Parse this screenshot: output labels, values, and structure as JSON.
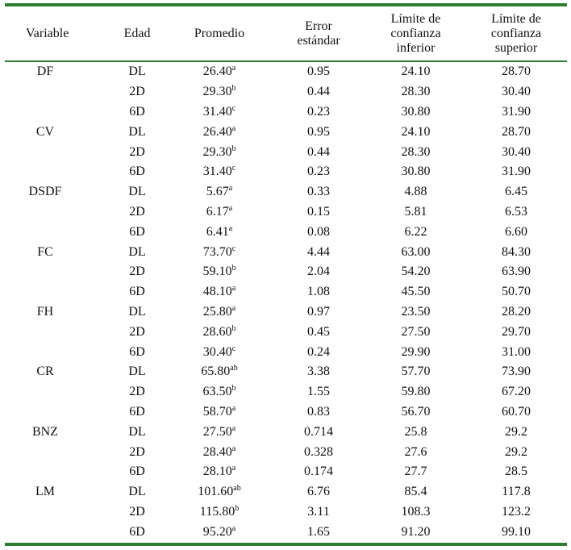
{
  "headers": {
    "variable": "Variable",
    "edad": "Edad",
    "promedio": "Promedio",
    "error": "Error\nestándar",
    "lci": "Límite de\nconfianza\ninferior",
    "lcs": "Límite de\nconfianza\nsuperior"
  },
  "rows": [
    {
      "variable": "DF",
      "edad": "DL",
      "mean": "26.40",
      "sup": "a",
      "se": "0.95",
      "lci": "24.10",
      "lcs": "28.70"
    },
    {
      "variable": "",
      "edad": "2D",
      "mean": "29.30",
      "sup": "b",
      "se": "0.44",
      "lci": "28.30",
      "lcs": "30.40"
    },
    {
      "variable": "",
      "edad": "6D",
      "mean": "31.40",
      "sup": "c",
      "se": "0.23",
      "lci": "30.80",
      "lcs": "31.90"
    },
    {
      "variable": "CV",
      "edad": "DL",
      "mean": "26.40",
      "sup": "a",
      "se": "0.95",
      "lci": "24.10",
      "lcs": "28.70"
    },
    {
      "variable": "",
      "edad": "2D",
      "mean": "29.30",
      "sup": "b",
      "se": "0.44",
      "lci": "28.30",
      "lcs": "30.40"
    },
    {
      "variable": "",
      "edad": "6D",
      "mean": "31.40",
      "sup": "c",
      "se": "0.23",
      "lci": "30.80",
      "lcs": "31.90"
    },
    {
      "variable": "DSDF",
      "edad": "DL",
      "mean": "5.67",
      "sup": "a",
      "se": "0.33",
      "lci": "4.88",
      "lcs": "6.45"
    },
    {
      "variable": "",
      "edad": "2D",
      "mean": "6.17",
      "sup": "a",
      "se": "0.15",
      "lci": "5.81",
      "lcs": "6.53"
    },
    {
      "variable": "",
      "edad": "6D",
      "mean": "6.41",
      "sup": "a",
      "se": "0.08",
      "lci": "6.22",
      "lcs": "6.60"
    },
    {
      "variable": "FC",
      "edad": "DL",
      "mean": "73.70",
      "sup": "c",
      "se": "4.44",
      "lci": "63.00",
      "lcs": "84.30"
    },
    {
      "variable": "",
      "edad": "2D",
      "mean": "59.10",
      "sup": "b",
      "se": "2.04",
      "lci": "54.20",
      "lcs": "63.90"
    },
    {
      "variable": "",
      "edad": "6D",
      "mean": "48.10",
      "sup": "a",
      "se": "1.08",
      "lci": "45.50",
      "lcs": "50.70"
    },
    {
      "variable": "FH",
      "edad": "DL",
      "mean": "25.80",
      "sup": "a",
      "se": "0.97",
      "lci": "23.50",
      "lcs": "28.20"
    },
    {
      "variable": "",
      "edad": "2D",
      "mean": "28.60",
      "sup": "b",
      "se": "0.45",
      "lci": "27.50",
      "lcs": "29.70"
    },
    {
      "variable": "",
      "edad": "6D",
      "mean": "30.40",
      "sup": "c",
      "se": "0.24",
      "lci": "29.90",
      "lcs": "31.00"
    },
    {
      "variable": "CR",
      "edad": "DL",
      "mean": "65.80",
      "sup": "ab",
      "se": "3.38",
      "lci": "57.70",
      "lcs": "73.90"
    },
    {
      "variable": "",
      "edad": "2D",
      "mean": "63.50",
      "sup": "b",
      "se": "1.55",
      "lci": "59.80",
      "lcs": "67.20"
    },
    {
      "variable": "",
      "edad": "6D",
      "mean": "58.70",
      "sup": "a",
      "se": "0.83",
      "lci": "56.70",
      "lcs": "60.70"
    },
    {
      "variable": "BNZ",
      "edad": "DL",
      "mean": "27.50",
      "sup": "a",
      "se": "0.714",
      "lci": "25.8",
      "lcs": "29.2"
    },
    {
      "variable": "",
      "edad": "2D",
      "mean": "28.40",
      "sup": "a",
      "se": "0.328",
      "lci": "27.6",
      "lcs": "29.2"
    },
    {
      "variable": "",
      "edad": "6D",
      "mean": "28.10",
      "sup": "a",
      "se": "0.174",
      "lci": "27.7",
      "lcs": "28.5"
    },
    {
      "variable": "LM",
      "edad": "DL",
      "mean": "101.60",
      "sup": "ab",
      "se": "6.76",
      "lci": "85.4",
      "lcs": "117.8"
    },
    {
      "variable": "",
      "edad": "2D",
      "mean": "115.80",
      "sup": "b",
      "se": "3.11",
      "lci": "108.3",
      "lcs": "123.2"
    },
    {
      "variable": "",
      "edad": "6D",
      "mean": "95.20",
      "sup": "a",
      "se": "1.65",
      "lci": "91.20",
      "lcs": "99.10"
    }
  ],
  "colors": {
    "rule": "#2e7d32",
    "text": "#111111"
  }
}
